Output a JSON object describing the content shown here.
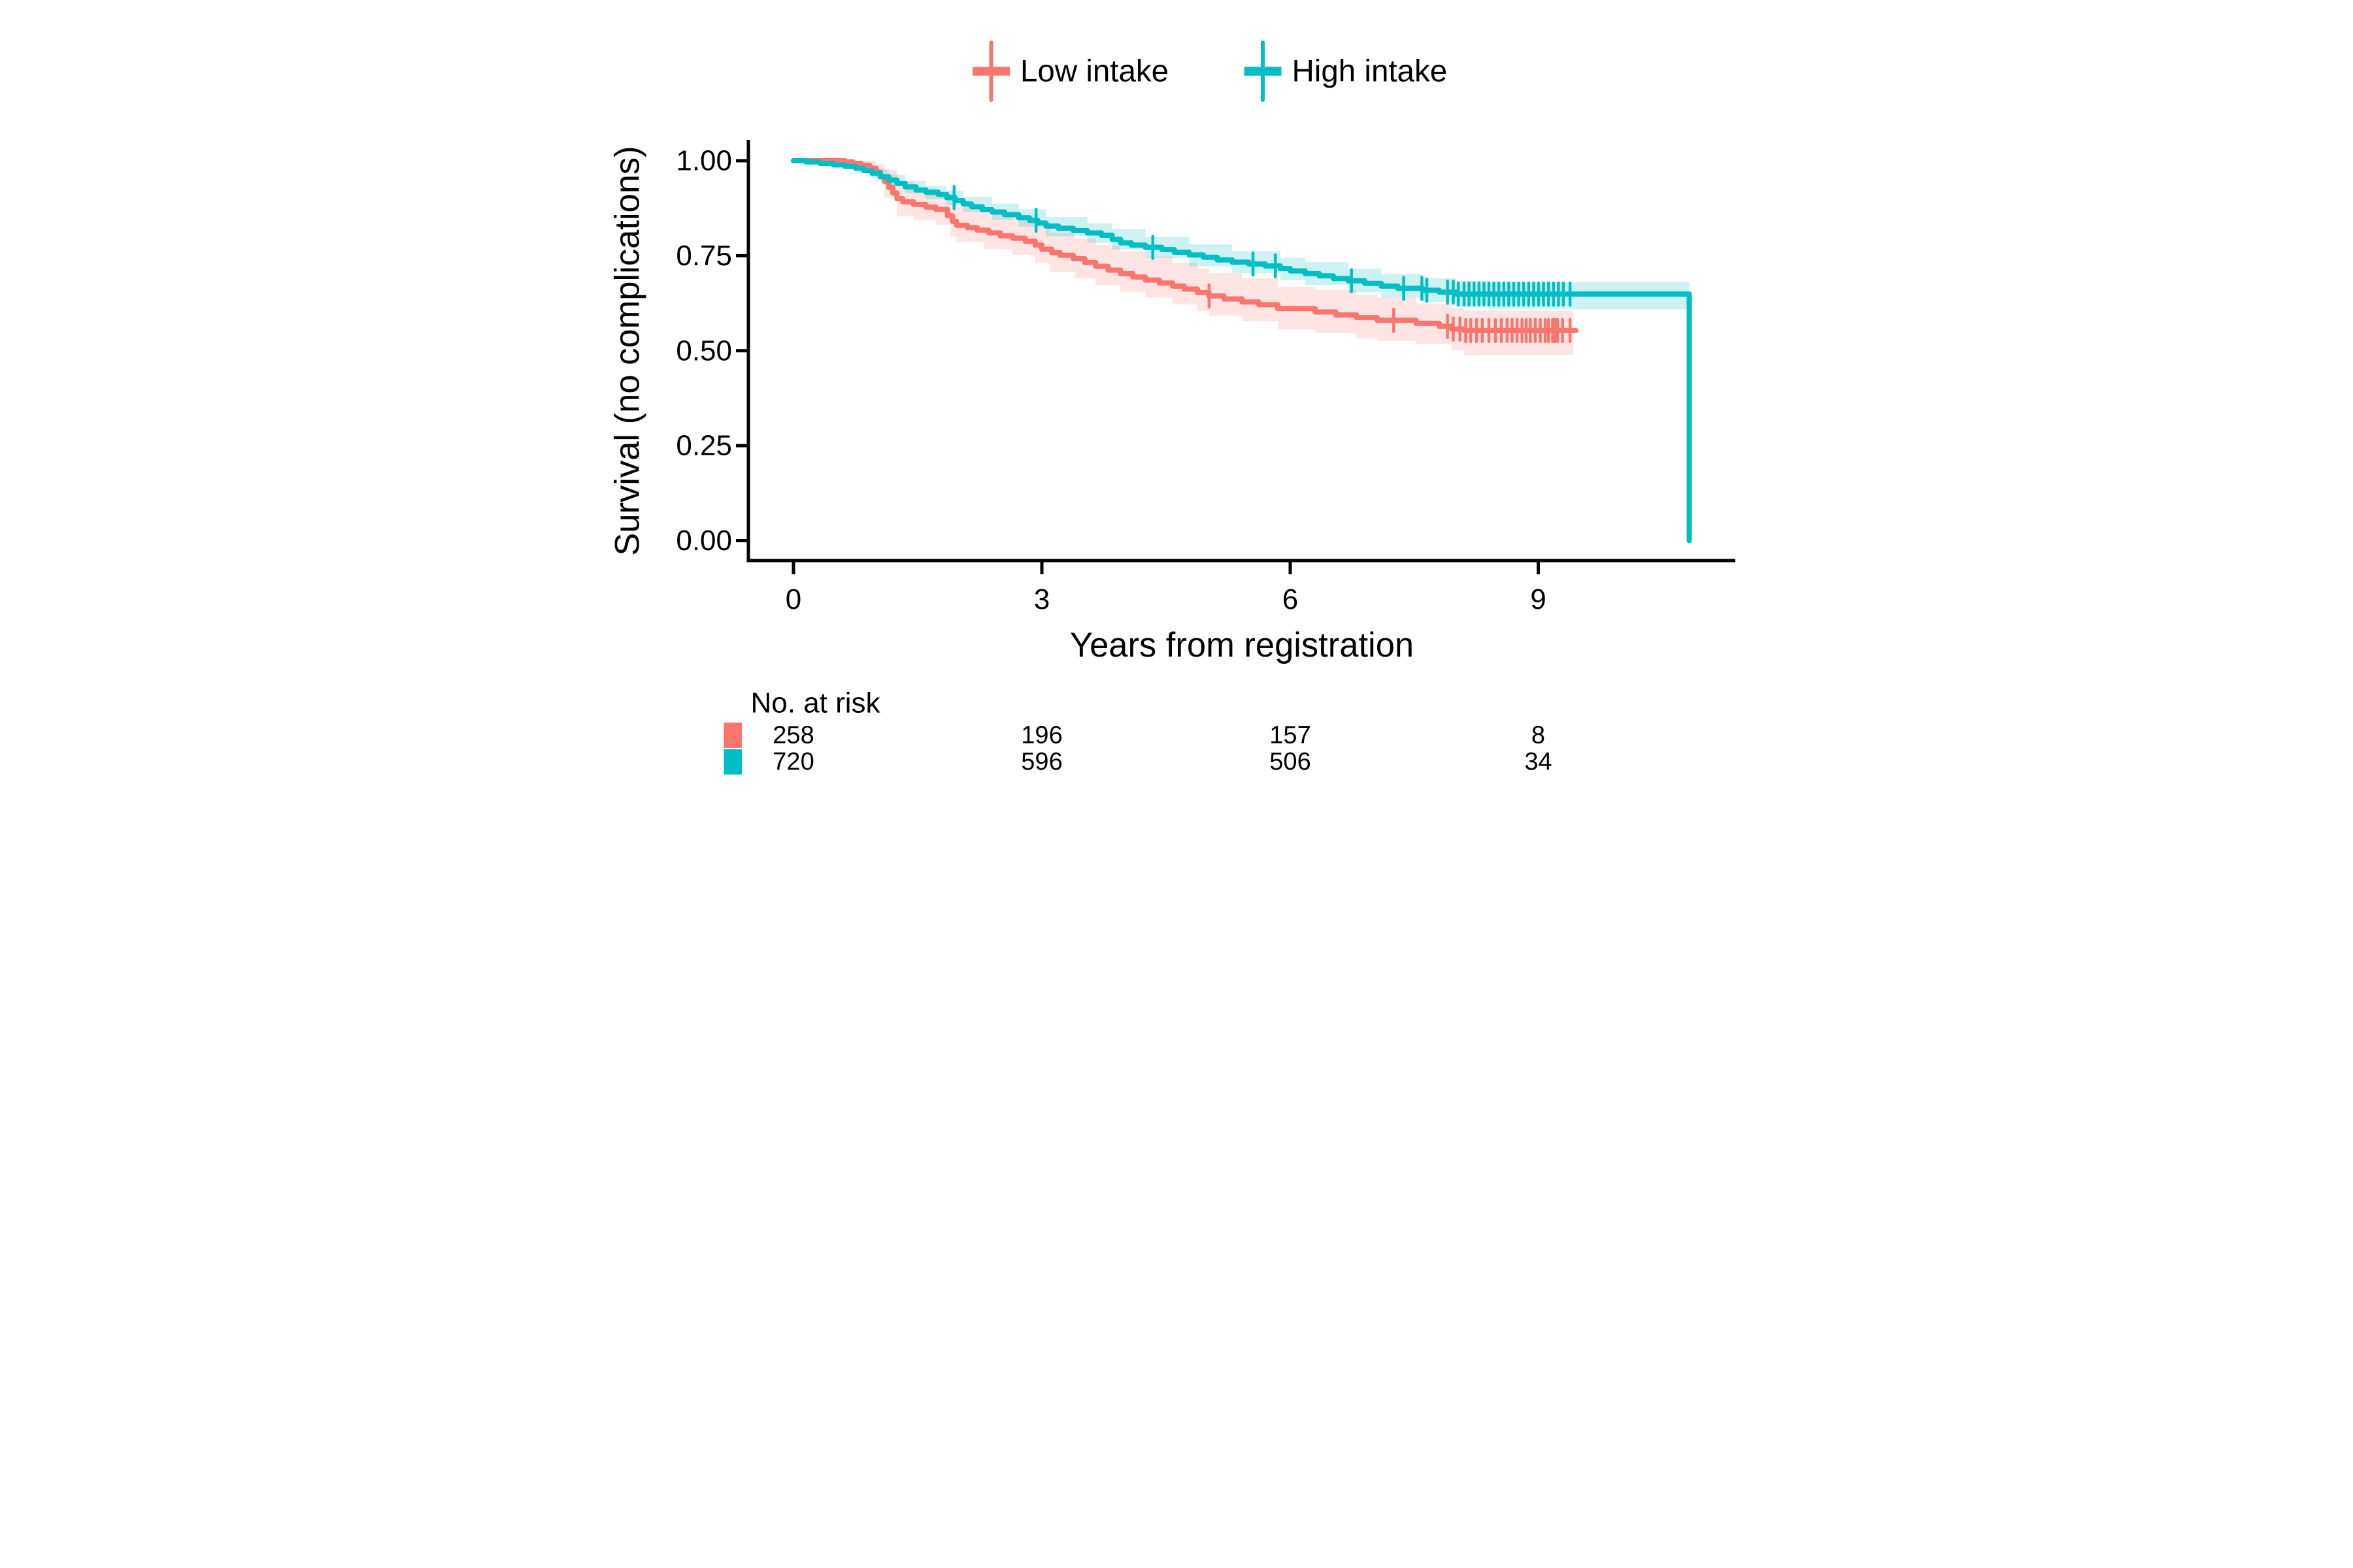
{
  "legend": {
    "items": [
      {
        "label": "Low intake",
        "color": "#F8766D"
      },
      {
        "label": "High intake",
        "color": "#00BFC4"
      }
    ]
  },
  "axes": {
    "y_label": "Survival (no complications)",
    "x_label": "Years from registration",
    "y_tick_labels": [
      "1.00",
      "0.75",
      "0.50",
      "0.25",
      "0.00"
    ],
    "x_tick_labels": [
      "0",
      "3",
      "6",
      "9"
    ]
  },
  "risk_table": {
    "title": "No. at risk",
    "rows": [
      {
        "name": "Low intake",
        "color": "#F8766D",
        "values": [
          "258",
          "196",
          "157",
          "8"
        ]
      },
      {
        "name": "High intake",
        "color": "#00BFC4",
        "values": [
          "720",
          "596",
          "506",
          "34"
        ]
      }
    ]
  },
  "chart_data": {
    "type": "line",
    "subtype": "kaplan_meier_step",
    "title": "",
    "xlabel": "Years from registration",
    "ylabel": "Survival (no complications)",
    "x_ticks": [
      0,
      3,
      6,
      9
    ],
    "x_axis_max": 11.4,
    "ylim": [
      0,
      1
    ],
    "y_ticks": [
      1.0,
      0.75,
      0.5,
      0.25,
      0.0
    ],
    "grid": false,
    "legend_position": "top",
    "band_opacity": 0.2,
    "series": [
      {
        "name": "Low intake",
        "color": "#F8766D",
        "steps": [
          [
            0,
            1.0
          ],
          [
            0.62,
            0.997
          ],
          [
            0.72,
            0.993
          ],
          [
            0.82,
            0.988
          ],
          [
            0.92,
            0.98
          ],
          [
            1.0,
            0.97
          ],
          [
            1.05,
            0.958
          ],
          [
            1.1,
            0.945
          ],
          [
            1.15,
            0.93
          ],
          [
            1.2,
            0.915
          ],
          [
            1.25,
            0.9
          ],
          [
            1.32,
            0.892
          ],
          [
            1.45,
            0.885
          ],
          [
            1.6,
            0.878
          ],
          [
            1.72,
            0.872
          ],
          [
            1.86,
            0.855
          ],
          [
            1.92,
            0.84
          ],
          [
            1.97,
            0.83
          ],
          [
            2.1,
            0.824
          ],
          [
            2.22,
            0.817
          ],
          [
            2.36,
            0.81
          ],
          [
            2.5,
            0.802
          ],
          [
            2.65,
            0.796
          ],
          [
            2.8,
            0.788
          ],
          [
            2.92,
            0.778
          ],
          [
            3.0,
            0.767
          ],
          [
            3.12,
            0.758
          ],
          [
            3.22,
            0.751
          ],
          [
            3.38,
            0.742
          ],
          [
            3.52,
            0.732
          ],
          [
            3.65,
            0.722
          ],
          [
            3.8,
            0.712
          ],
          [
            3.95,
            0.703
          ],
          [
            4.1,
            0.694
          ],
          [
            4.25,
            0.686
          ],
          [
            4.42,
            0.678
          ],
          [
            4.58,
            0.67
          ],
          [
            4.72,
            0.662
          ],
          [
            4.88,
            0.653
          ],
          [
            5.02,
            0.644
          ],
          [
            5.2,
            0.636
          ],
          [
            5.42,
            0.628
          ],
          [
            5.62,
            0.621
          ],
          [
            5.85,
            0.611
          ],
          [
            6.3,
            0.602
          ],
          [
            6.55,
            0.594
          ],
          [
            6.8,
            0.587
          ],
          [
            7.05,
            0.58
          ],
          [
            7.52,
            0.572
          ],
          [
            7.8,
            0.564
          ],
          [
            7.95,
            0.557
          ],
          [
            8.1,
            0.553
          ]
        ],
        "end_time": 9.45,
        "drop_to_zero": false,
        "censor_times": [
          5.02,
          7.25,
          7.9,
          7.97,
          8.05,
          8.12,
          8.18,
          8.25,
          8.32,
          8.4,
          8.48,
          8.55,
          8.62,
          8.68,
          8.74,
          8.8,
          8.85,
          8.9,
          8.96,
          9.02,
          9.08,
          9.12,
          9.17,
          9.2,
          9.23,
          9.29,
          9.38
        ],
        "band": [
          [
            0.62,
            0.99,
            1.0
          ],
          [
            0.85,
            0.972,
            1.0
          ],
          [
            1.0,
            0.945,
            0.99
          ],
          [
            1.1,
            0.903,
            0.976
          ],
          [
            1.25,
            0.855,
            0.945
          ],
          [
            1.45,
            0.843,
            0.928
          ],
          [
            1.72,
            0.832,
            0.914
          ],
          [
            1.9,
            0.8,
            0.89
          ],
          [
            1.97,
            0.785,
            0.878
          ],
          [
            2.3,
            0.768,
            0.86
          ],
          [
            2.65,
            0.752,
            0.845
          ],
          [
            2.92,
            0.73,
            0.828
          ],
          [
            3.1,
            0.708,
            0.81
          ],
          [
            3.4,
            0.69,
            0.795
          ],
          [
            3.65,
            0.672,
            0.778
          ],
          [
            3.95,
            0.655,
            0.762
          ],
          [
            4.25,
            0.64,
            0.748
          ],
          [
            4.58,
            0.622,
            0.732
          ],
          [
            4.88,
            0.605,
            0.716
          ],
          [
            5.02,
            0.592,
            0.704
          ],
          [
            5.42,
            0.578,
            0.69
          ],
          [
            5.85,
            0.556,
            0.668
          ],
          [
            6.3,
            0.546,
            0.66
          ],
          [
            6.8,
            0.532,
            0.647
          ],
          [
            7.05,
            0.526,
            0.64
          ],
          [
            7.52,
            0.518,
            0.624
          ],
          [
            7.95,
            0.502,
            0.612
          ],
          [
            8.1,
            0.489,
            0.606
          ]
        ],
        "band_end_time": 9.42
      },
      {
        "name": "High intake",
        "color": "#00BFC4",
        "steps": [
          [
            0,
            1.0
          ],
          [
            0.15,
            0.997
          ],
          [
            0.32,
            0.993
          ],
          [
            0.48,
            0.989
          ],
          [
            0.62,
            0.985
          ],
          [
            0.75,
            0.98
          ],
          [
            0.85,
            0.974
          ],
          [
            0.95,
            0.967
          ],
          [
            1.05,
            0.958
          ],
          [
            1.15,
            0.949
          ],
          [
            1.25,
            0.94
          ],
          [
            1.35,
            0.931
          ],
          [
            1.48,
            0.923
          ],
          [
            1.6,
            0.917
          ],
          [
            1.75,
            0.911
          ],
          [
            1.85,
            0.903
          ],
          [
            1.95,
            0.895
          ],
          [
            2.05,
            0.886
          ],
          [
            2.15,
            0.879
          ],
          [
            2.28,
            0.871
          ],
          [
            2.4,
            0.865
          ],
          [
            2.55,
            0.858
          ],
          [
            2.72,
            0.85
          ],
          [
            2.85,
            0.843
          ],
          [
            2.95,
            0.836
          ],
          [
            3.05,
            0.828
          ],
          [
            3.2,
            0.822
          ],
          [
            3.38,
            0.816
          ],
          [
            3.55,
            0.81
          ],
          [
            3.72,
            0.804
          ],
          [
            3.85,
            0.793
          ],
          [
            3.95,
            0.784
          ],
          [
            4.08,
            0.778
          ],
          [
            4.25,
            0.772
          ],
          [
            4.45,
            0.766
          ],
          [
            4.6,
            0.759
          ],
          [
            4.78,
            0.752
          ],
          [
            4.95,
            0.746
          ],
          [
            5.12,
            0.739
          ],
          [
            5.3,
            0.733
          ],
          [
            5.5,
            0.728
          ],
          [
            5.7,
            0.723
          ],
          [
            5.88,
            0.716
          ],
          [
            6.0,
            0.71
          ],
          [
            6.18,
            0.703
          ],
          [
            6.35,
            0.697
          ],
          [
            6.52,
            0.69
          ],
          [
            6.7,
            0.684
          ],
          [
            6.9,
            0.677
          ],
          [
            7.1,
            0.67
          ],
          [
            7.3,
            0.664
          ],
          [
            7.6,
            0.659
          ],
          [
            7.8,
            0.654
          ],
          [
            8.0,
            0.649
          ]
        ],
        "end_time": 10.82,
        "drop_to_zero": true,
        "censor_times": [
          1.94,
          2.93,
          4.34,
          5.55,
          5.82,
          6.74,
          7.37,
          7.59,
          7.65,
          7.9,
          7.97,
          8.03,
          8.1,
          8.16,
          8.22,
          8.28,
          8.34,
          8.4,
          8.46,
          8.52,
          8.58,
          8.64,
          8.7,
          8.76,
          8.82,
          8.88,
          8.94,
          9.0,
          9.06,
          9.12,
          9.18,
          9.24,
          9.3,
          9.38
        ],
        "band": [
          [
            0.15,
            0.994,
            1.0
          ],
          [
            0.48,
            0.984,
            0.995
          ],
          [
            0.75,
            0.971,
            0.989
          ],
          [
            0.95,
            0.954,
            0.979
          ],
          [
            1.15,
            0.934,
            0.963
          ],
          [
            1.35,
            0.914,
            0.947
          ],
          [
            1.6,
            0.899,
            0.934
          ],
          [
            1.85,
            0.884,
            0.921
          ],
          [
            2.05,
            0.865,
            0.905
          ],
          [
            2.4,
            0.844,
            0.887
          ],
          [
            2.72,
            0.826,
            0.872
          ],
          [
            3.05,
            0.802,
            0.852
          ],
          [
            3.55,
            0.784,
            0.835
          ],
          [
            3.85,
            0.766,
            0.82
          ],
          [
            4.25,
            0.744,
            0.799
          ],
          [
            4.78,
            0.722,
            0.78
          ],
          [
            5.3,
            0.704,
            0.762
          ],
          [
            5.88,
            0.686,
            0.744
          ],
          [
            6.18,
            0.673,
            0.733
          ],
          [
            6.7,
            0.654,
            0.716
          ],
          [
            7.1,
            0.64,
            0.702
          ],
          [
            7.6,
            0.628,
            0.691
          ],
          [
            8.0,
            0.617,
            0.684
          ],
          [
            8.4,
            0.609,
            0.681
          ]
        ],
        "band_end_time": 10.82
      }
    ],
    "risk_table": {
      "title": "No. at risk",
      "times": [
        0,
        3,
        6,
        9
      ],
      "rows": [
        {
          "name": "Low intake",
          "counts": [
            258,
            196,
            157,
            8
          ]
        },
        {
          "name": "High intake",
          "counts": [
            720,
            596,
            506,
            34
          ]
        }
      ]
    }
  }
}
